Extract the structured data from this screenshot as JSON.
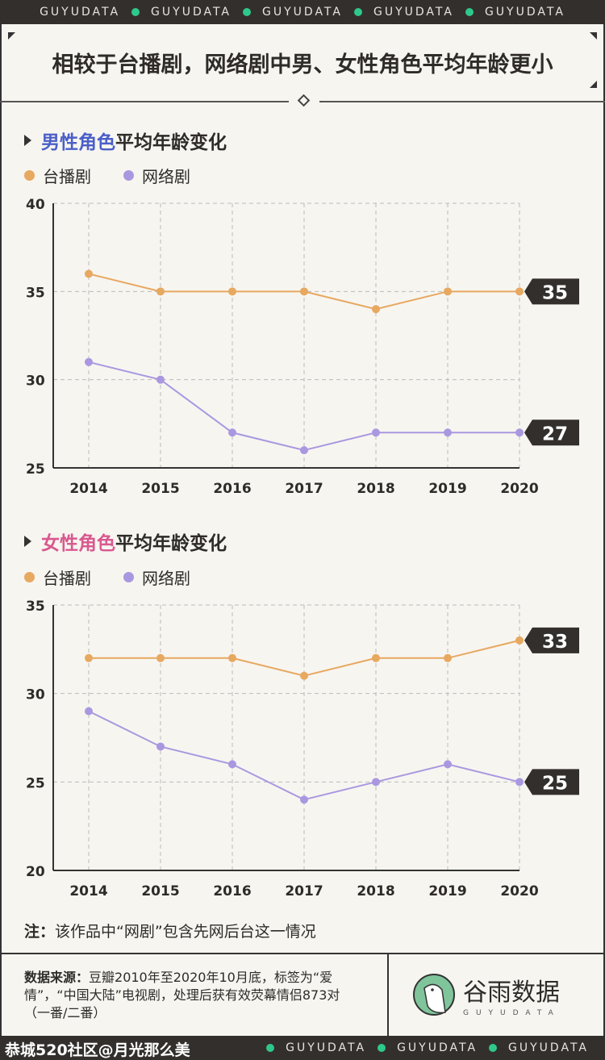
{
  "band_text": "GUYUDATA",
  "title": "相较于台播剧，网络剧中男、女性角色平均年龄更小",
  "colors": {
    "tv": "#e7a860",
    "web": "#a998e0",
    "male": "#4a5fc9",
    "female": "#d9588f",
    "brand_green": "#2ec98a",
    "label_bg": "#332f2d"
  },
  "chart_data": [
    {
      "type": "line",
      "title_highlight": "男性角色",
      "title_rest": "平均年龄变化",
      "categories": [
        "2014",
        "2015",
        "2016",
        "2017",
        "2018",
        "2019",
        "2020"
      ],
      "ylim": [
        25,
        40
      ],
      "yticks": [
        25,
        30,
        35,
        40
      ],
      "grid": true,
      "legend": "top-left",
      "series": [
        {
          "name": "台播剧",
          "values": [
            36,
            35,
            35,
            35,
            34,
            35,
            35
          ],
          "end_label": "35"
        },
        {
          "name": "网络剧",
          "values": [
            31,
            30,
            27,
            26,
            27,
            27,
            27
          ],
          "end_label": "27"
        }
      ]
    },
    {
      "type": "line",
      "title_highlight": "女性角色",
      "title_rest": "平均年龄变化",
      "categories": [
        "2014",
        "2015",
        "2016",
        "2017",
        "2018",
        "2019",
        "2020"
      ],
      "ylim": [
        20,
        35
      ],
      "yticks": [
        20,
        25,
        30,
        35
      ],
      "grid": true,
      "legend": "top-left",
      "series": [
        {
          "name": "台播剧",
          "values": [
            32,
            32,
            32,
            31,
            32,
            32,
            33
          ],
          "end_label": "33"
        },
        {
          "name": "网络剧",
          "values": [
            29,
            27,
            26,
            24,
            25,
            26,
            25
          ],
          "end_label": "25"
        }
      ]
    }
  ],
  "note": {
    "label": "注：",
    "text": "该作品中“网剧”包含先网后台这一情况"
  },
  "source": {
    "label": "数据来源：",
    "text": "豆瓣2010年至2020年10月底，标签为“爱情”，“中国大陆”电视剧，处理后获有效荧幕情侣873对（一番/二番）"
  },
  "logo": {
    "name": "谷雨数据",
    "sub": "GUYUDATA"
  },
  "watermark": "恭城520社区@月光那么美"
}
